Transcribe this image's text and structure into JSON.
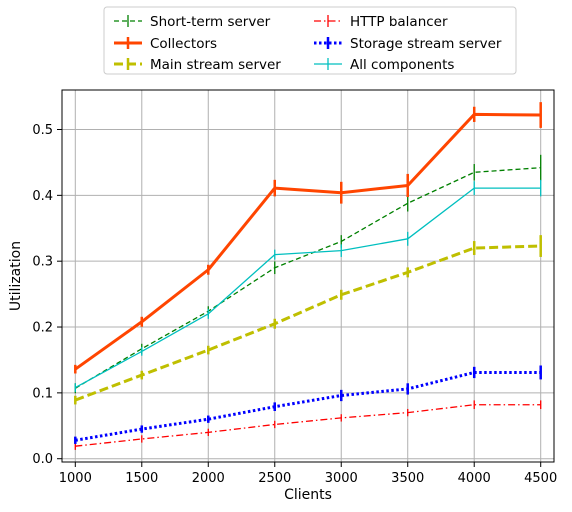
{
  "chart_data": {
    "type": "line",
    "title": "",
    "xlabel": "Clients",
    "ylabel": "Utilization",
    "xlim": [
      900,
      4600
    ],
    "ylim": [
      -0.005,
      0.56
    ],
    "grid": true,
    "legend_placement": "top-center-outside",
    "x": [
      1000,
      1500,
      2000,
      2500,
      3000,
      3500,
      4000,
      4500
    ],
    "x_ticks": [
      1000,
      1500,
      2000,
      2500,
      3000,
      3500,
      4000,
      4500
    ],
    "y_ticks": [
      0.0,
      0.1,
      0.2,
      0.3,
      0.4,
      0.5
    ],
    "x_tick_labels": [
      "1000",
      "1500",
      "2000",
      "2500",
      "3000",
      "3500",
      "4000",
      "4500"
    ],
    "y_tick_labels": [
      "0.0",
      "0.1",
      "0.2",
      "0.3",
      "0.4",
      "0.5"
    ],
    "series": [
      {
        "name": "Short-term server",
        "color": "#008000",
        "style": "dashed",
        "values": [
          0.107,
          0.167,
          0.224,
          0.29,
          0.33,
          0.388,
          0.435,
          0.442
        ],
        "errors": [
          0.003,
          0.003,
          0.003,
          0.005,
          0.005,
          0.008,
          0.008,
          0.015
        ]
      },
      {
        "name": "Collectors",
        "color": "#ff4500",
        "style": "solid-thick",
        "values": [
          0.136,
          0.208,
          0.287,
          0.411,
          0.404,
          0.415,
          0.523,
          0.522
        ],
        "errors": [
          0.002,
          0.003,
          0.003,
          0.008,
          0.012,
          0.013,
          0.007,
          0.015
        ]
      },
      {
        "name": "Main stream server",
        "color": "#bfbf00",
        "style": "dashed-thick",
        "values": [
          0.089,
          0.127,
          0.165,
          0.205,
          0.249,
          0.283,
          0.32,
          0.323
        ],
        "errors": [
          0.002,
          0.002,
          0.002,
          0.003,
          0.003,
          0.003,
          0.006,
          0.012
        ]
      },
      {
        "name": "HTTP balancer",
        "color": "#ff0000",
        "style": "dashdot",
        "values": [
          0.019,
          0.03,
          0.04,
          0.052,
          0.062,
          0.07,
          0.082,
          0.082
        ],
        "errors": [
          0.001,
          0.001,
          0.001,
          0.001,
          0.001,
          0.001,
          0.002,
          0.002
        ]
      },
      {
        "name": "Storage stream server",
        "color": "#0000ff",
        "style": "dotted-thick",
        "values": [
          0.028,
          0.045,
          0.06,
          0.079,
          0.096,
          0.106,
          0.131,
          0.131
        ],
        "errors": [
          0.001,
          0.001,
          0.001,
          0.002,
          0.004,
          0.004,
          0.004,
          0.006
        ]
      },
      {
        "name": "All components",
        "color": "#00bfbf",
        "style": "solid",
        "values": [
          0.108,
          0.163,
          0.22,
          0.31,
          0.316,
          0.334,
          0.411,
          0.411
        ],
        "errors": [
          0.002,
          0.002,
          0.003,
          0.003,
          0.005,
          0.006,
          0.006,
          0.008
        ]
      }
    ]
  }
}
